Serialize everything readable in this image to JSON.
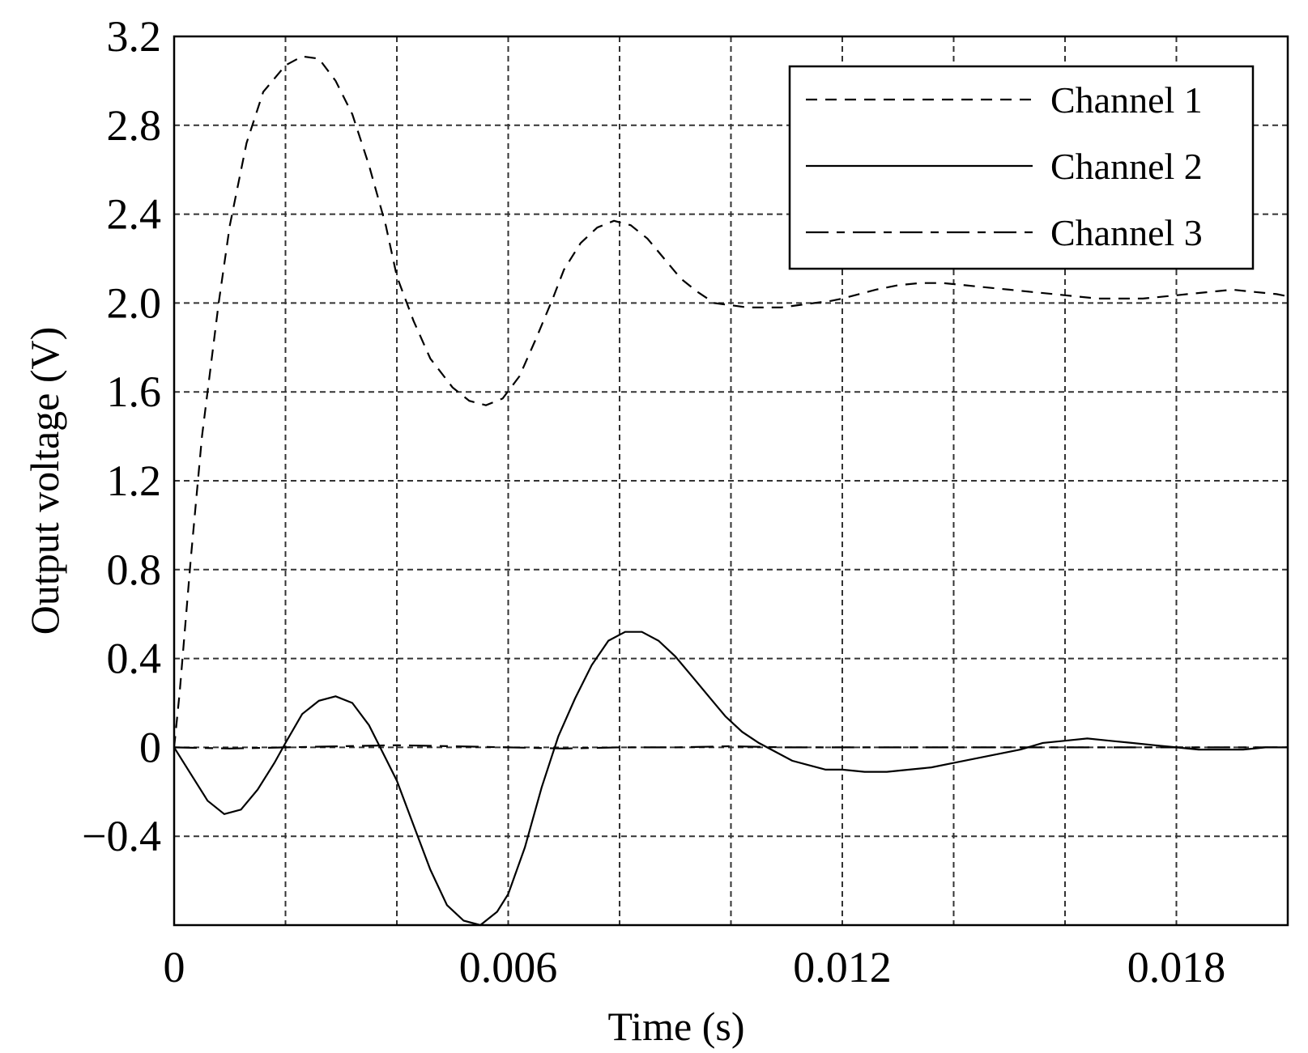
{
  "chart_data": {
    "type": "line",
    "xlabel": "Time (s)",
    "ylabel": "Output voltage (V)",
    "xlim": [
      0,
      0.02
    ],
    "ylim": [
      -0.8,
      3.2
    ],
    "grid": true,
    "legend_position": "top-right",
    "x_ticks": [
      0,
      0.006,
      0.012,
      0.018
    ],
    "x_tick_labels": [
      "0",
      "0.006",
      "0.012",
      "0.018"
    ],
    "x_grid": [
      0.002,
      0.004,
      0.006,
      0.008,
      0.01,
      0.012,
      0.014,
      0.016,
      0.018
    ],
    "y_ticks": [
      -0.4,
      0,
      0.4,
      0.8,
      1.2,
      1.6,
      2.0,
      2.4,
      2.8,
      3.2
    ],
    "y_tick_labels": [
      "−0.4",
      "0",
      "0.4",
      "0.8",
      "1.2",
      "1.6",
      "2.0",
      "2.4",
      "2.8",
      "3.2"
    ],
    "y_grid": [
      -0.4,
      0,
      0.4,
      0.8,
      1.2,
      1.6,
      2.0,
      2.4,
      2.8
    ],
    "series": [
      {
        "name": "Channel 1",
        "dash": "14 10",
        "x": [
          0,
          0.0001,
          0.0003,
          0.0005,
          0.0008,
          0.001,
          0.0013,
          0.0016,
          0.002,
          0.0023,
          0.0026,
          0.0029,
          0.0032,
          0.0035,
          0.0038,
          0.004,
          0.0043,
          0.0046,
          0.005,
          0.0053,
          0.0056,
          0.0059,
          0.0062,
          0.0065,
          0.0068,
          0.007,
          0.0073,
          0.0076,
          0.0079,
          0.0082,
          0.0085,
          0.0088,
          0.0091,
          0.0094,
          0.0097,
          0.01,
          0.0103,
          0.0106,
          0.0109,
          0.0112,
          0.0115,
          0.0118,
          0.012,
          0.0123,
          0.0126,
          0.013,
          0.0134,
          0.0138,
          0.0142,
          0.0146,
          0.015,
          0.0154,
          0.0158,
          0.0162,
          0.0166,
          0.017,
          0.0174,
          0.0178,
          0.0182,
          0.0186,
          0.019,
          0.0194,
          0.0198,
          0.02
        ],
        "y": [
          0,
          0.25,
          0.85,
          1.4,
          2.0,
          2.35,
          2.72,
          2.95,
          3.07,
          3.11,
          3.1,
          3.0,
          2.85,
          2.62,
          2.35,
          2.12,
          1.92,
          1.75,
          1.62,
          1.56,
          1.54,
          1.57,
          1.67,
          1.84,
          2.02,
          2.15,
          2.27,
          2.34,
          2.37,
          2.35,
          2.29,
          2.2,
          2.11,
          2.05,
          2.0,
          1.99,
          1.98,
          1.98,
          1.98,
          1.99,
          2.0,
          2.01,
          2.02,
          2.04,
          2.06,
          2.08,
          2.09,
          2.09,
          2.08,
          2.07,
          2.06,
          2.05,
          2.04,
          2.03,
          2.02,
          2.02,
          2.02,
          2.03,
          2.04,
          2.05,
          2.06,
          2.05,
          2.04,
          2.03
        ]
      },
      {
        "name": "Channel 2",
        "dash": "",
        "x": [
          0,
          0.0003,
          0.0006,
          0.0009,
          0.0012,
          0.0015,
          0.0018,
          0.002,
          0.0023,
          0.0026,
          0.0029,
          0.0032,
          0.0035,
          0.0038,
          0.004,
          0.0043,
          0.0046,
          0.0049,
          0.0052,
          0.0055,
          0.0058,
          0.006,
          0.0063,
          0.0066,
          0.0069,
          0.0072,
          0.0075,
          0.0078,
          0.0081,
          0.0084,
          0.0087,
          0.009,
          0.0093,
          0.0096,
          0.0099,
          0.0102,
          0.0105,
          0.0108,
          0.0111,
          0.0114,
          0.0117,
          0.012,
          0.0124,
          0.0128,
          0.0132,
          0.0136,
          0.014,
          0.0144,
          0.0148,
          0.0152,
          0.0156,
          0.016,
          0.0164,
          0.0168,
          0.0172,
          0.0176,
          0.018,
          0.0184,
          0.0188,
          0.0192,
          0.0196,
          0.02
        ],
        "y": [
          0,
          -0.12,
          -0.24,
          -0.3,
          -0.28,
          -0.19,
          -0.07,
          0.02,
          0.15,
          0.21,
          0.23,
          0.2,
          0.1,
          -0.05,
          -0.15,
          -0.35,
          -0.55,
          -0.71,
          -0.78,
          -0.8,
          -0.74,
          -0.66,
          -0.45,
          -0.18,
          0.05,
          0.22,
          0.37,
          0.48,
          0.52,
          0.52,
          0.48,
          0.41,
          0.32,
          0.23,
          0.14,
          0.07,
          0.02,
          -0.02,
          -0.06,
          -0.08,
          -0.1,
          -0.1,
          -0.11,
          -0.11,
          -0.1,
          -0.09,
          -0.07,
          -0.05,
          -0.03,
          -0.01,
          0.02,
          0.03,
          0.04,
          0.03,
          0.02,
          0.01,
          0.0,
          -0.01,
          -0.01,
          -0.01,
          0.0,
          0.0
        ]
      },
      {
        "name": "Channel 3",
        "dash": "28 10 10 10",
        "x": [
          0,
          0.001,
          0.002,
          0.003,
          0.004,
          0.005,
          0.006,
          0.007,
          0.008,
          0.009,
          0.01,
          0.011,
          0.012,
          0.013,
          0.014,
          0.015,
          0.016,
          0.017,
          0.018,
          0.019,
          0.02
        ],
        "y": [
          0,
          -0.005,
          0.0,
          0.005,
          0.01,
          0.005,
          0.0,
          -0.005,
          0.0,
          0.0,
          0.005,
          0.0,
          0.0,
          0.0,
          0.0,
          0.0,
          0.0,
          0.0,
          0.0,
          0.0,
          0.0
        ]
      }
    ]
  }
}
